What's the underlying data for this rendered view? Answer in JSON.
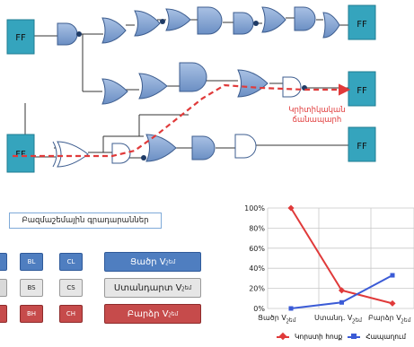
{
  "flipflops": {
    "label": "FF"
  },
  "critical_path_label": "Կրիտիկական ճանապարհ",
  "library_box": {
    "label": "Բազմաշեմային գրադարաններ"
  },
  "cells": {
    "col_partial": [
      {
        "label": ""
      },
      {
        "label": ""
      },
      {
        "label": ""
      }
    ],
    "col_b": [
      "BL",
      "BS",
      "BH"
    ],
    "col_c": [
      "CL",
      "CS",
      "CH"
    ]
  },
  "vth_boxes": {
    "low": {
      "text": "Ցածր V",
      "sub": "շեմ"
    },
    "std": {
      "text": "Ստանդարտ V",
      "sub": "շեմ"
    },
    "high": {
      "text": "Բարձր V",
      "sub": "շեմ"
    }
  },
  "colors": {
    "gate_fill": "#7b9fd0",
    "ff_fill": "#35a4bd",
    "critical": "#e03a3a",
    "low": "#4f7ec0",
    "std": "#d9d9d9",
    "high": "#c64b4b",
    "blue_series": "#3b5bd6"
  },
  "chart_data": {
    "type": "line",
    "categories": [
      [
        "Ցածր V",
        "շեմ"
      ],
      [
        "Ստանդ. V",
        "շեմ"
      ],
      [
        "Բարձր V",
        "շեմ"
      ]
    ],
    "series": [
      {
        "name": "Կորստի հոսք",
        "values": [
          100,
          18,
          5
        ],
        "color": "#e03a3a"
      },
      {
        "name": "Հապաղում",
        "values": [
          0,
          6,
          33
        ],
        "color": "#3b5bd6"
      }
    ],
    "ylim": [
      0,
      100
    ],
    "yticks": [
      "0%",
      "20%",
      "40%",
      "60%",
      "80%",
      "100%"
    ],
    "grid": true,
    "legend": "bottom"
  }
}
